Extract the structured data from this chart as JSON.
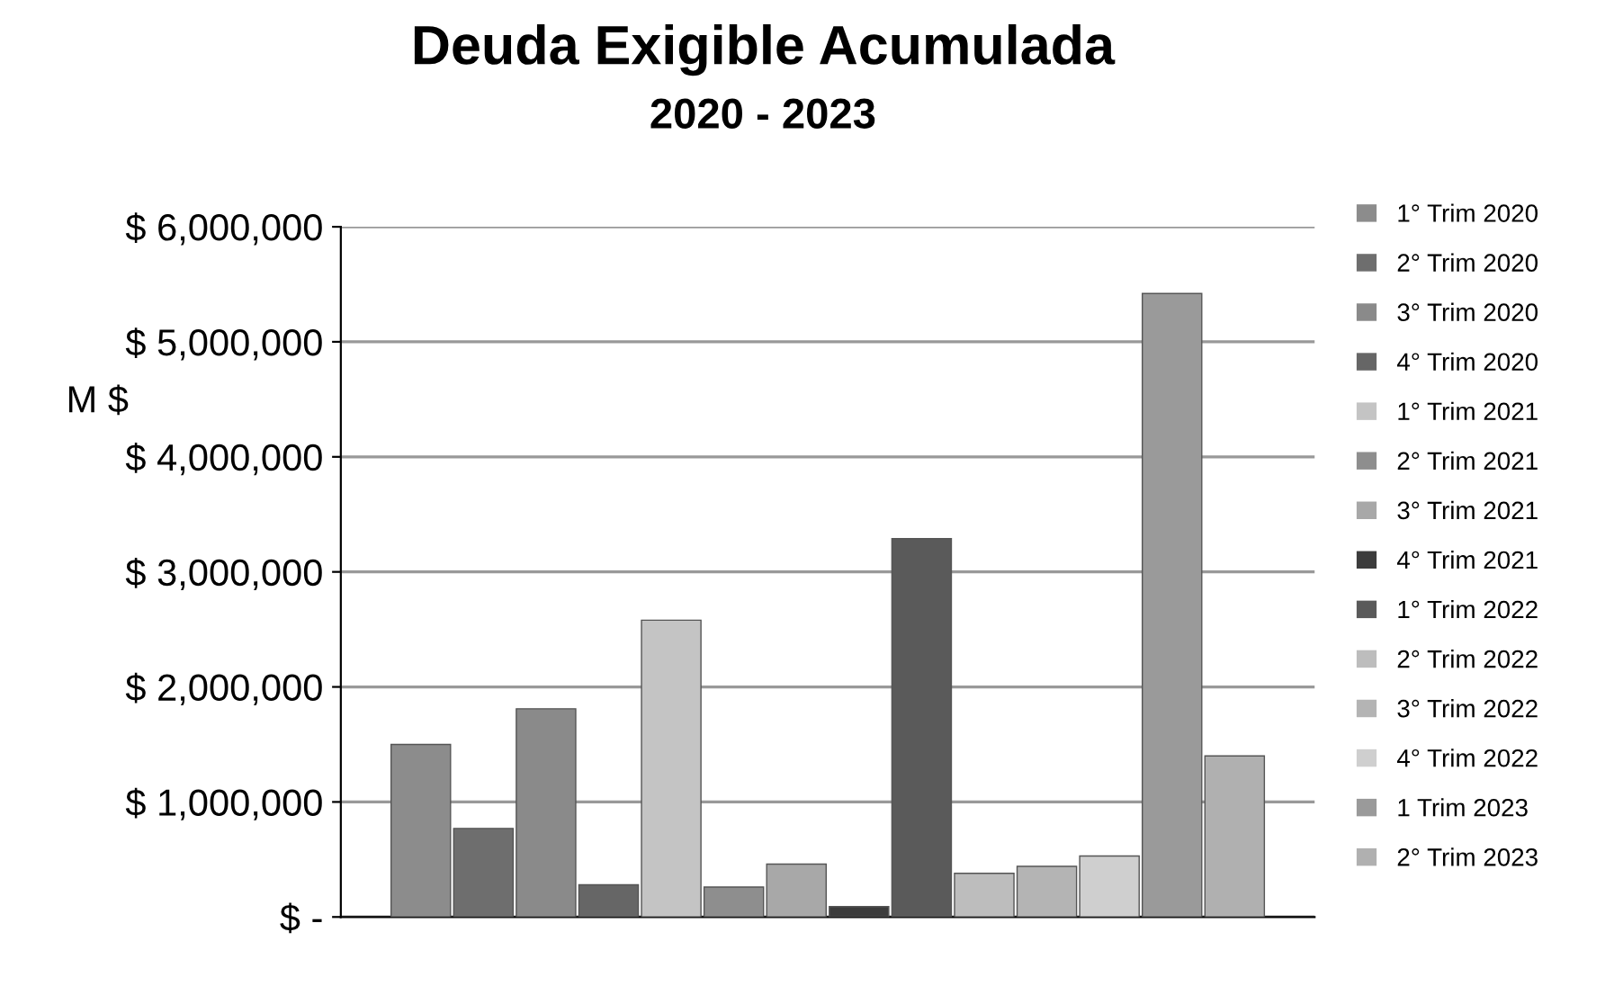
{
  "chart_data": {
    "type": "bar",
    "title": "Deuda Exigible Acumulada",
    "subtitle": "2020 - 2023",
    "ylabel": "M $",
    "categories": [
      null
    ],
    "series": [
      {
        "name": "1° Trim 2020",
        "color": "#8c8c8c",
        "values": [
          1500000
        ]
      },
      {
        "name": "2° Trim 2020",
        "color": "#6e6e6e",
        "values": [
          770000
        ]
      },
      {
        "name": "3° Trim 2020",
        "color": "#8a8a8a",
        "values": [
          1810000
        ]
      },
      {
        "name": "4° Trim 2020",
        "color": "#666666",
        "values": [
          280000
        ]
      },
      {
        "name": "1° Trim 2021",
        "color": "#c4c4c4",
        "values": [
          2580000
        ]
      },
      {
        "name": "2° Trim 2021",
        "color": "#8e8e8e",
        "values": [
          260000
        ]
      },
      {
        "name": "3° Trim 2021",
        "color": "#a8a8a8",
        "values": [
          460000
        ]
      },
      {
        "name": "4° Trim 2021",
        "color": "#3c3c3c",
        "values": [
          90000
        ]
      },
      {
        "name": "1° Trim 2022",
        "color": "#5a5a5a",
        "values": [
          3290000
        ]
      },
      {
        "name": "2° Trim 2022",
        "color": "#bdbdbd",
        "values": [
          380000
        ]
      },
      {
        "name": "3° Trim 2022",
        "color": "#b4b4b4",
        "values": [
          440000
        ]
      },
      {
        "name": "4° Trim 2022",
        "color": "#cfcfcf",
        "values": [
          530000
        ]
      },
      {
        "name": "1 Trim 2023",
        "color": "#9a9a9a",
        "values": [
          5420000
        ]
      },
      {
        "name": "2° Trim 2023",
        "color": "#b0b0b0",
        "values": [
          1400000
        ]
      }
    ],
    "ylim": [
      0,
      6000000
    ],
    "yticks": [
      {
        "value": 0,
        "label": "$ -"
      },
      {
        "value": 1000000,
        "label": "$ 1,000,000"
      },
      {
        "value": 2000000,
        "label": "$ 2,000,000"
      },
      {
        "value": 3000000,
        "label": "$ 3,000,000"
      },
      {
        "value": 4000000,
        "label": "$ 4,000,000"
      },
      {
        "value": 5000000,
        "label": "$ 5,000,000"
      },
      {
        "value": 6000000,
        "label": "$ 6,000,000"
      }
    ],
    "grid": "y",
    "legend": "right"
  }
}
